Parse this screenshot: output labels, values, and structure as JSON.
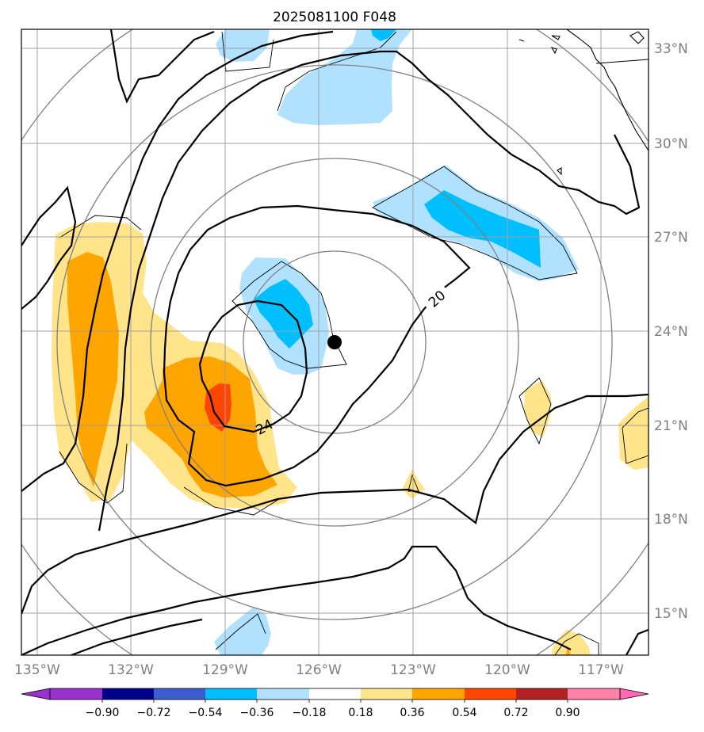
{
  "title": "2025081100 F048",
  "map": {
    "lon_labels": [
      "135°W",
      "132°W",
      "129°W",
      "126°W",
      "123°W",
      "120°W",
      "117°W"
    ],
    "lat_labels": [
      "33°N",
      "30°N",
      "27°N",
      "24°N",
      "21°N",
      "18°N",
      "15°N"
    ],
    "contour_labels": [
      "20",
      "24"
    ],
    "center_marker": "storm-center-dot",
    "colors": {
      "frame": "#000000",
      "grid": "#a0a0a0",
      "range_rings": "#808080",
      "contours": "#000000"
    }
  },
  "colorbar": {
    "tick_labels": [
      "−0.90",
      "−0.72",
      "−0.54",
      "−0.36",
      "−0.18",
      "0.18",
      "0.36",
      "0.54",
      "0.72",
      "0.90"
    ],
    "colors": [
      "#9932cc",
      "#00008b",
      "#3a5fcd",
      "#00bfff",
      "#b0e2ff",
      "#ffffff",
      "#ffe48a",
      "#ffa500",
      "#ff4500",
      "#b22222",
      "#ff82ab",
      "#ff69b4"
    ]
  }
}
